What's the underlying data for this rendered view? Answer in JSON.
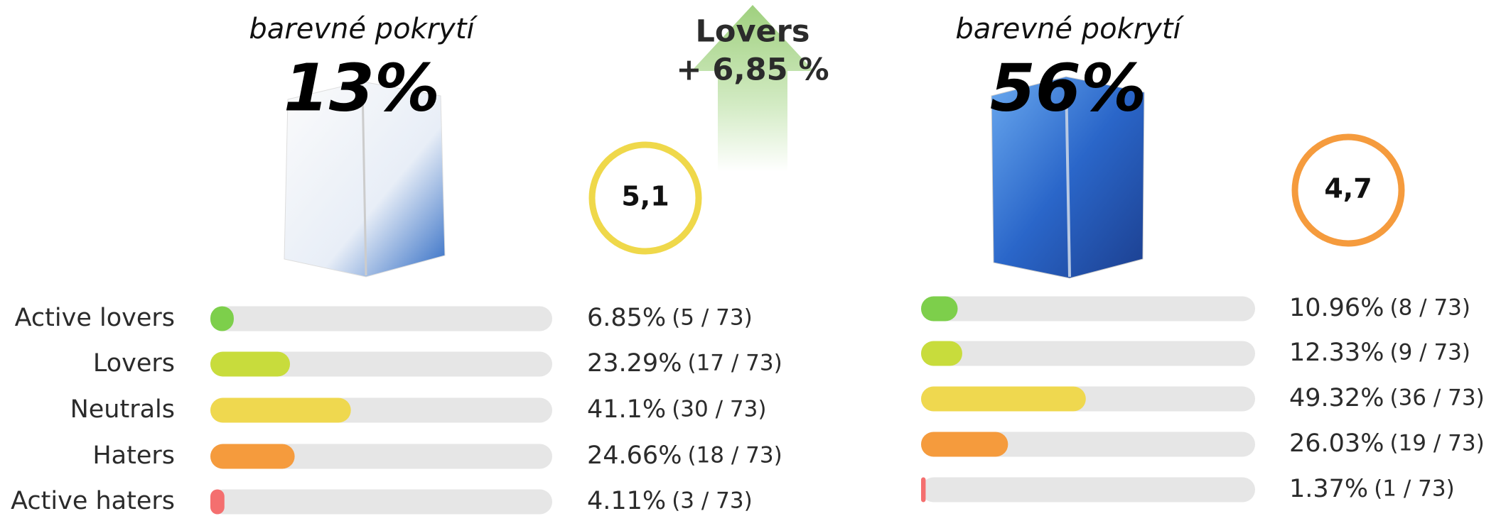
{
  "chart_data": [
    {
      "type": "bar",
      "subtitle": "barevné pokrytí",
      "title": "13%",
      "score": "5,1",
      "score_color": "#efd84a",
      "categories": [
        "Active lovers",
        "Lovers",
        "Neutrals",
        "Haters",
        "Active haters"
      ],
      "values": [
        6.85,
        23.29,
        41.1,
        24.66,
        4.11
      ],
      "value_labels": [
        "6.85%",
        "23.29%",
        "41.1%",
        "24.66%",
        "4.11%"
      ],
      "counts": [
        "(5 / 73)",
        "(17 / 73)",
        "(30 / 73)",
        "(18 / 73)",
        "(3 / 73)"
      ],
      "colors": [
        "#7dcf4b",
        "#c8dc3c",
        "#efd84f",
        "#f59b3d",
        "#f46f6f"
      ],
      "xlim": [
        0,
        100
      ]
    },
    {
      "type": "bar",
      "subtitle": "barevné pokrytí",
      "title": "56%",
      "score": "4,7",
      "score_color": "#f59b3d",
      "categories": [
        null,
        null,
        null,
        null,
        null
      ],
      "values": [
        10.96,
        12.33,
        49.32,
        26.03,
        1.37
      ],
      "value_labels": [
        "10.96%",
        "12.33%",
        "49.32%",
        "26.03%",
        "1.37%"
      ],
      "counts": [
        "(8 / 73)",
        "(9 / 73)",
        "(36 / 73)",
        "(19 / 73)",
        "(1 / 73)"
      ],
      "colors": [
        "#7dcf4b",
        "#c8dc3c",
        "#efd84f",
        "#f59b3d",
        "#f46f6f"
      ],
      "xlim": [
        0,
        100
      ]
    }
  ],
  "callout": {
    "title": "Lovers",
    "text": "+ 6,85 %"
  }
}
